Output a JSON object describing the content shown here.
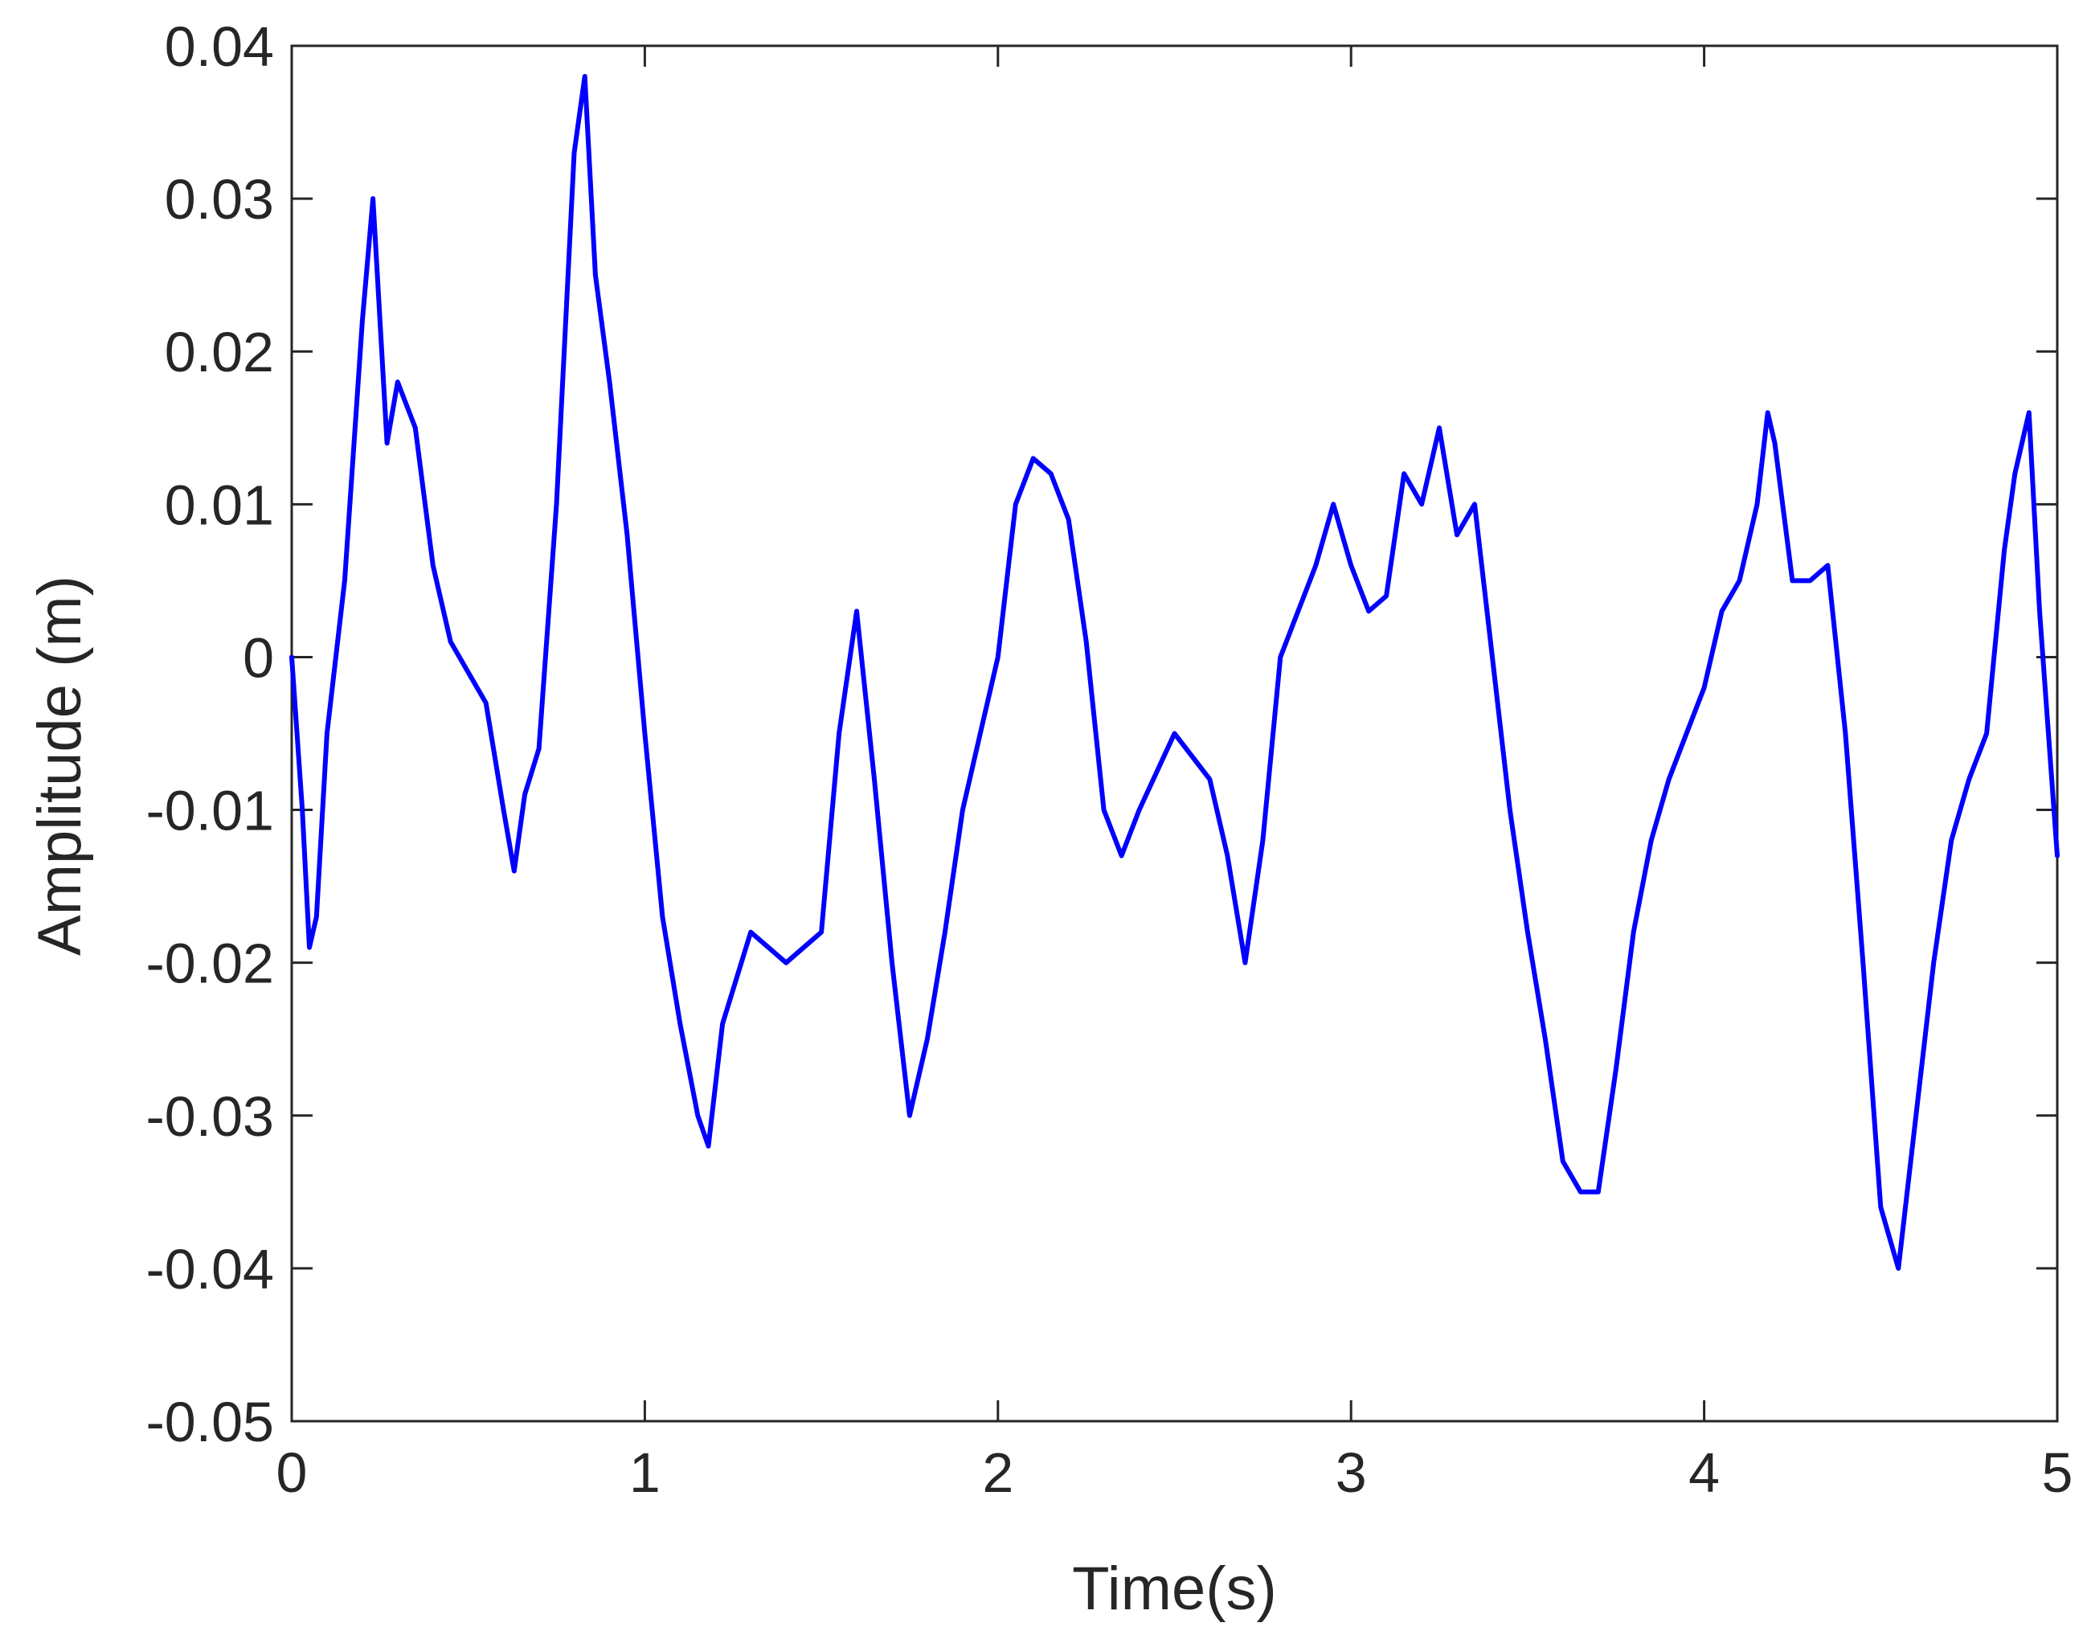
{
  "chart_data": {
    "type": "line",
    "title": "",
    "xlabel": "Time(s)",
    "ylabel": "Amplitude (m)",
    "xlim": [
      0,
      5
    ],
    "ylim": [
      -0.05,
      0.04
    ],
    "xticks": [
      0,
      1,
      2,
      3,
      4,
      5
    ],
    "xtick_labels": [
      "0",
      "1",
      "2",
      "3",
      "4",
      "5"
    ],
    "yticks": [
      -0.05,
      -0.04,
      -0.03,
      -0.02,
      -0.01,
      0,
      0.01,
      0.02,
      0.03,
      0.04
    ],
    "ytick_labels": [
      "-0.05",
      "-0.04",
      "-0.03",
      "-0.02",
      "-0.01",
      "0",
      "0.01",
      "0.02",
      "0.03",
      "0.04"
    ],
    "grid": false,
    "box": true,
    "line_color": "#0000ff",
    "series": [
      {
        "x": [
          0,
          0.03,
          0.05,
          0.07,
          0.1,
          0.15,
          0.2,
          0.23,
          0.27,
          0.3,
          0.35,
          0.4,
          0.45,
          0.5,
          0.55,
          0.6,
          0.63,
          0.66,
          0.7,
          0.75,
          0.8,
          0.83,
          0.86,
          0.9,
          0.95,
          1.0,
          1.05,
          1.1,
          1.15,
          1.18,
          1.22,
          1.3,
          1.4,
          1.5,
          1.55,
          1.6,
          1.65,
          1.7,
          1.75,
          1.8,
          1.85,
          1.9,
          1.95,
          2.0,
          2.05,
          2.1,
          2.15,
          2.2,
          2.25,
          2.3,
          2.35,
          2.4,
          2.5,
          2.6,
          2.65,
          2.7,
          2.75,
          2.8,
          2.85,
          2.9,
          2.95,
          3.0,
          3.05,
          3.1,
          3.15,
          3.2,
          3.25,
          3.3,
          3.35,
          3.4,
          3.45,
          3.5,
          3.55,
          3.6,
          3.65,
          3.7,
          3.75,
          3.8,
          3.85,
          3.9,
          3.95,
          4.0,
          4.05,
          4.1,
          4.15,
          4.18,
          4.2,
          4.25,
          4.3,
          4.35,
          4.4,
          4.45,
          4.5,
          4.55,
          4.6,
          4.65,
          4.7,
          4.75,
          4.8,
          4.85,
          4.88,
          4.92,
          4.95,
          5.0
        ],
        "y": [
          0.0,
          -0.01,
          -0.019,
          -0.017,
          -0.005,
          0.005,
          0.022,
          0.03,
          0.014,
          0.018,
          0.015,
          0.006,
          0.001,
          -0.001,
          -0.003,
          -0.01,
          -0.014,
          -0.009,
          -0.006,
          0.01,
          0.033,
          0.038,
          0.025,
          0.018,
          0.008,
          -0.005,
          -0.017,
          -0.024,
          -0.03,
          -0.032,
          -0.024,
          -0.018,
          -0.02,
          -0.018,
          -0.005,
          0.003,
          -0.008,
          -0.02,
          -0.03,
          -0.025,
          -0.018,
          -0.01,
          -0.005,
          0.0,
          0.01,
          0.013,
          0.012,
          0.009,
          0.001,
          -0.01,
          -0.013,
          -0.01,
          -0.005,
          -0.008,
          -0.013,
          -0.02,
          -0.012,
          0.0,
          0.003,
          0.006,
          0.01,
          0.006,
          0.003,
          0.004,
          0.012,
          0.01,
          0.015,
          0.008,
          0.01,
          0.0,
          -0.01,
          -0.018,
          -0.025,
          -0.033,
          -0.035,
          -0.035,
          -0.027,
          -0.018,
          -0.012,
          -0.008,
          -0.005,
          -0.002,
          0.003,
          0.005,
          0.01,
          0.016,
          0.014,
          0.005,
          0.005,
          0.006,
          -0.005,
          -0.02,
          -0.036,
          -0.04,
          -0.03,
          -0.02,
          -0.012,
          -0.008,
          -0.005,
          0.007,
          0.012,
          0.016,
          0.003,
          -0.013
        ]
      }
    ]
  }
}
